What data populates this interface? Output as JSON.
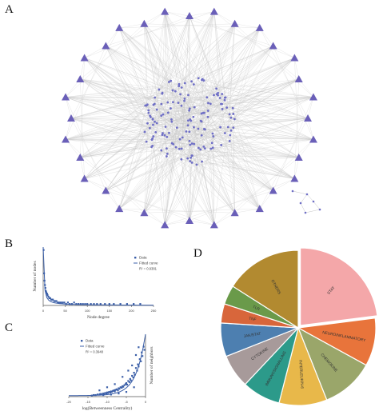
{
  "panels": {
    "a": "A",
    "b": "B",
    "c": "C",
    "d": "D"
  },
  "colors": {
    "node": "#6f6fc6",
    "edge": "#b9b9b9",
    "hub": "#6a5fb8",
    "scatter": "#3b5fa8",
    "fit": "#3b5fa8"
  },
  "chart_data": [
    {
      "type": "network",
      "hub_labels": [
        "",
        "",
        "",
        "",
        "",
        "",
        "",
        "",
        "",
        "",
        "",
        "",
        "",
        "",
        "",
        "",
        "",
        "",
        "",
        "",
        "",
        "",
        "",
        "",
        "",
        "",
        "",
        "",
        "",
        "",
        "",
        ""
      ]
    },
    {
      "type": "scatter",
      "xlabel": "Node degree",
      "ylabel": "Number of nodes",
      "xticks": [
        "0",
        "50",
        "100",
        "150",
        "200",
        "250"
      ],
      "legend": [
        "Data",
        "Fitted curve",
        "R² = 0.9381"
      ],
      "xlim": [
        0,
        250
      ],
      "ylim": [
        0,
        40
      ],
      "points": [
        [
          1,
          38
        ],
        [
          2,
          22
        ],
        [
          3,
          17
        ],
        [
          4,
          14
        ],
        [
          5,
          12
        ],
        [
          6,
          10
        ],
        [
          7,
          9
        ],
        [
          8,
          8
        ],
        [
          9,
          8
        ],
        [
          10,
          7
        ],
        [
          12,
          6
        ],
        [
          14,
          5
        ],
        [
          16,
          5
        ],
        [
          18,
          4
        ],
        [
          20,
          4
        ],
        [
          22,
          4
        ],
        [
          25,
          3
        ],
        [
          28,
          3
        ],
        [
          30,
          3
        ],
        [
          33,
          2
        ],
        [
          36,
          2
        ],
        [
          40,
          2
        ],
        [
          44,
          2
        ],
        [
          48,
          2
        ],
        [
          52,
          1
        ],
        [
          56,
          2
        ],
        [
          60,
          1
        ],
        [
          65,
          1
        ],
        [
          70,
          2
        ],
        [
          75,
          1
        ],
        [
          80,
          1
        ],
        [
          85,
          1
        ],
        [
          90,
          1
        ],
        [
          95,
          1
        ],
        [
          100,
          1
        ],
        [
          108,
          1
        ],
        [
          115,
          1
        ],
        [
          122,
          1
        ],
        [
          130,
          1
        ],
        [
          140,
          1
        ],
        [
          150,
          1
        ],
        [
          160,
          1
        ],
        [
          175,
          1
        ],
        [
          190,
          1
        ],
        [
          205,
          1
        ],
        [
          220,
          1
        ]
      ]
    },
    {
      "type": "scatter",
      "xlabel": "log(Betweenness Centrality)",
      "ylabel": "Number of neighbors",
      "xticks": [
        "-20",
        "-15",
        "-10",
        "-5",
        "0"
      ],
      "legend": [
        "Data",
        "Fitted curve",
        "R² = 0.3948"
      ],
      "xlim": [
        -20,
        0
      ],
      "ylim": [
        0,
        120
      ],
      "points": [
        [
          -14,
          2
        ],
        [
          -13.5,
          3
        ],
        [
          -13,
          3
        ],
        [
          -12.5,
          4
        ],
        [
          -12,
          4
        ],
        [
          -11.8,
          5
        ],
        [
          -11.5,
          5
        ],
        [
          -11,
          6
        ],
        [
          -10.8,
          5
        ],
        [
          -10.5,
          7
        ],
        [
          -10.2,
          6
        ],
        [
          -10,
          8
        ],
        [
          -9.8,
          7
        ],
        [
          -9.5,
          9
        ],
        [
          -9.2,
          8
        ],
        [
          -9,
          10
        ],
        [
          -8.8,
          9
        ],
        [
          -8.5,
          11
        ],
        [
          -8.2,
          12
        ],
        [
          -8,
          10
        ],
        [
          -7.8,
          13
        ],
        [
          -7.5,
          14
        ],
        [
          -7.2,
          12
        ],
        [
          -7,
          16
        ],
        [
          -6.8,
          15
        ],
        [
          -6.5,
          18
        ],
        [
          -6.2,
          17
        ],
        [
          -6,
          20
        ],
        [
          -5.8,
          19
        ],
        [
          -5.5,
          22
        ],
        [
          -5.2,
          24
        ],
        [
          -5,
          26
        ],
        [
          -4.8,
          23
        ],
        [
          -4.5,
          30
        ],
        [
          -4.2,
          28
        ],
        [
          -4,
          34
        ],
        [
          -3.8,
          31
        ],
        [
          -3.5,
          40
        ],
        [
          -3.2,
          37
        ],
        [
          -3,
          46
        ],
        [
          -2.8,
          42
        ],
        [
          -2.5,
          55
        ],
        [
          -2.2,
          50
        ],
        [
          -2,
          62
        ],
        [
          -1.8,
          58
        ],
        [
          -1.5,
          72
        ],
        [
          -1.2,
          68
        ],
        [
          -1,
          85
        ],
        [
          -0.8,
          78
        ],
        [
          -0.5,
          96
        ],
        [
          -0.3,
          90
        ],
        [
          -3.5,
          60
        ],
        [
          -2.5,
          80
        ],
        [
          -1.8,
          95
        ],
        [
          -6,
          38
        ],
        [
          -4.5,
          50
        ],
        [
          -8,
          24
        ],
        [
          -10,
          18
        ],
        [
          -12,
          12
        ],
        [
          -5,
          9
        ],
        [
          -3,
          18
        ],
        [
          -7,
          6
        ],
        [
          -9,
          4
        ],
        [
          -11,
          3
        ]
      ]
    },
    {
      "type": "pie",
      "slices": [
        {
          "label": "STAT",
          "value": 23,
          "color": "#f4a7a9"
        },
        {
          "label": "NEUROINFLAMMATORY",
          "value": 10,
          "color": "#e8743b"
        },
        {
          "label": "CHEMOKINE",
          "value": 11,
          "color": "#9aa66a"
        },
        {
          "label": "INTERLEUKIN-6",
          "value": 10,
          "color": "#e8b84a"
        },
        {
          "label": "IMMUNOSIGNALLING",
          "value": 8,
          "color": "#2c9a8a"
        },
        {
          "label": "CYTOKINE",
          "value": 7,
          "color": "#a79a9a"
        },
        {
          "label": "JAK/STAT",
          "value": 7,
          "color": "#4d7fb0"
        },
        {
          "label": "TNF",
          "value": 4,
          "color": "#d8663b"
        },
        {
          "label": "TLR",
          "value": 4,
          "color": "#6a9a4a"
        },
        {
          "label": "OTHERS",
          "value": 16,
          "color": "#b28a30"
        }
      ]
    }
  ]
}
